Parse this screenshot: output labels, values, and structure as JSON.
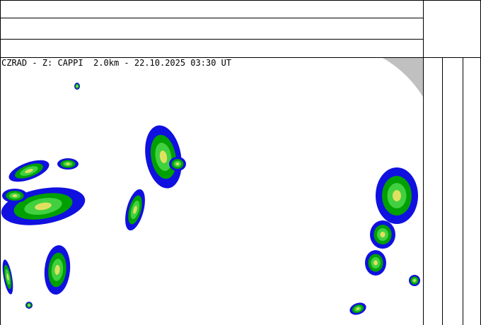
{
  "map": {
    "title": "CZRAD - Z: CAPPI  2.0km - 22.10.2025 03:30 UT",
    "colors": {
      "low": "#1010e0",
      "mid": "#00a000",
      "high": "#40d040",
      "peak": "#e0e060",
      "outside_range": "#c0c0c0"
    }
  },
  "header_rows": [
    "",
    "",
    ""
  ],
  "side_columns": [
    "",
    "",
    ""
  ]
}
